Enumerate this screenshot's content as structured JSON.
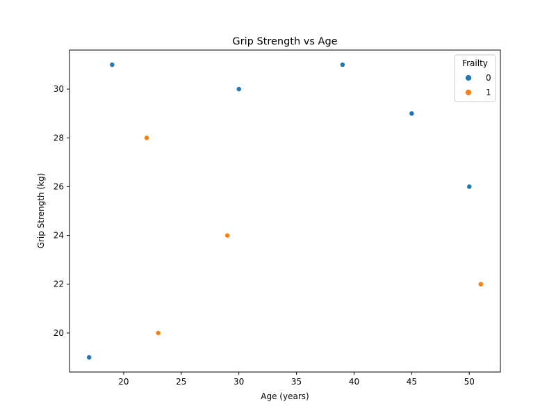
{
  "chart_data": {
    "type": "scatter",
    "title": "Grip Strength vs Age",
    "xlabel": "Age (years)",
    "ylabel": "Grip Strength (kg)",
    "xlim": [
      15.3,
      52.7
    ],
    "ylim": [
      18.4,
      31.6
    ],
    "x_ticks": [
      20,
      25,
      30,
      35,
      40,
      45,
      50
    ],
    "y_ticks": [
      20,
      22,
      24,
      26,
      28,
      30
    ],
    "grid": false,
    "legend": {
      "title": "Frailty",
      "placement": "top-right"
    },
    "series": [
      {
        "name": "0",
        "color": "#1f77b4",
        "points": [
          {
            "x": 17,
            "y": 19
          },
          {
            "x": 19,
            "y": 31
          },
          {
            "x": 30,
            "y": 30
          },
          {
            "x": 39,
            "y": 31
          },
          {
            "x": 45,
            "y": 29
          },
          {
            "x": 50,
            "y": 26
          }
        ]
      },
      {
        "name": "1",
        "color": "#ff7f0e",
        "points": [
          {
            "x": 22,
            "y": 28
          },
          {
            "x": 23,
            "y": 20
          },
          {
            "x": 29,
            "y": 24
          },
          {
            "x": 51,
            "y": 22
          }
        ]
      }
    ]
  }
}
